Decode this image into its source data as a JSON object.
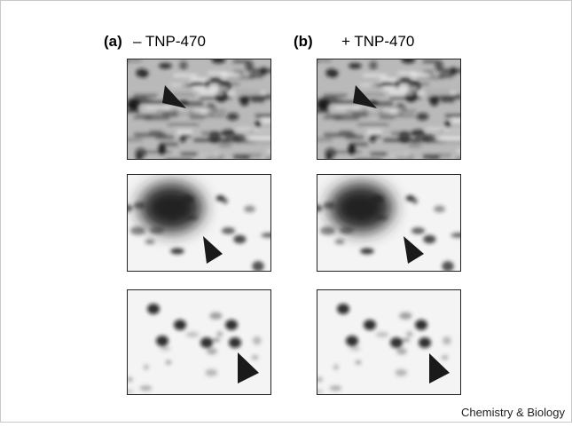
{
  "figure": {
    "panel_a_label": "(a)",
    "panel_a_condition": "– TNP-470",
    "panel_b_label": "(b)",
    "panel_b_condition": "+ TNP-470",
    "journal": "Chemistry & Biology"
  }
}
